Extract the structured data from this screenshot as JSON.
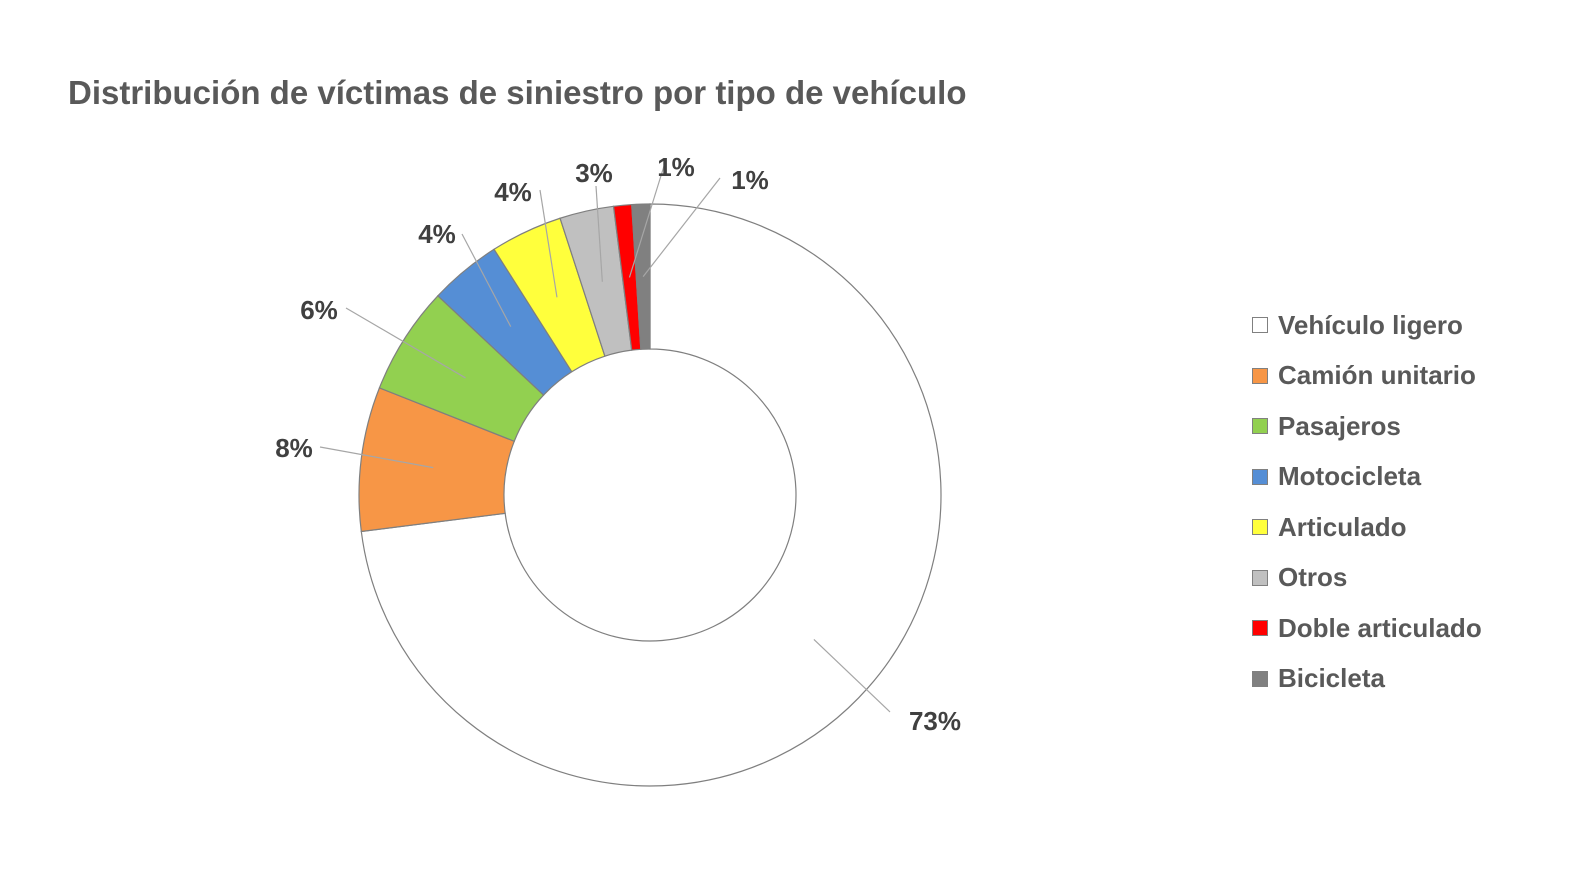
{
  "chart_data": {
    "type": "pie",
    "subtype": "doughnut",
    "title": "Distribución de víctimas de siniestro por tipo de vehículo",
    "legend_position": "right",
    "slices": [
      {
        "name": "Vehículo ligero",
        "value": 73,
        "label": "73%",
        "color": "#FFFFFF"
      },
      {
        "name": "Camión unitario",
        "value": 8,
        "label": "8%",
        "color": "#F79646"
      },
      {
        "name": "Pasajeros",
        "value": 6,
        "label": "6%",
        "color": "#92D050"
      },
      {
        "name": "Motocicleta",
        "value": 4,
        "label": "4%",
        "color": "#558ED5"
      },
      {
        "name": "Articulado",
        "value": 4,
        "label": "4%",
        "color": "#FFFF3C"
      },
      {
        "name": "Otros",
        "value": 3,
        "label": "3%",
        "color": "#C0C0C0"
      },
      {
        "name": "Doble articulado",
        "value": 1,
        "label": "1%",
        "color": "#FF0000"
      },
      {
        "name": "Bicicleta",
        "value": 1,
        "label": "1%",
        "color": "#808080"
      }
    ]
  }
}
